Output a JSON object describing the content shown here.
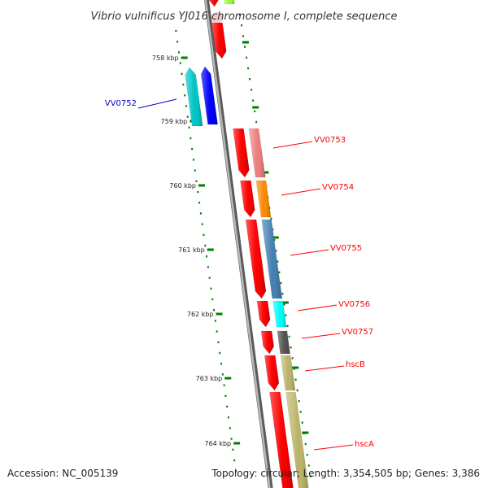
{
  "title": "Vibrio vulnificus YJ016 chromosome I, complete sequence",
  "footer": {
    "accession": "Accession: NC_005139",
    "topology": "Topology: circular; Length: 3,354,505 bp; Genes: 3,386"
  },
  "ticks": [
    "758 kbp",
    "759 kbp",
    "760 kbp",
    "761 kbp",
    "762 kbp",
    "763 kbp",
    "764 kbp"
  ],
  "genes": [
    {
      "label": "",
      "strand": "forward",
      "color": "#ff0000"
    },
    {
      "label": "",
      "strand": "reverse",
      "color": "#99ff33"
    },
    {
      "label": "VV0752",
      "strand": "minus",
      "color": "#00c8c8",
      "label_color": "#0000cc"
    },
    {
      "label": "",
      "strand": "minus",
      "color": "#0000ff"
    },
    {
      "label": "VV0753",
      "strand": "forward",
      "color": "#f08080",
      "label_color": "#ff0000"
    },
    {
      "label": "VV0754",
      "strand": "forward",
      "color": "#ff8c00",
      "label_color": "#ff0000"
    },
    {
      "label": "VV0755",
      "strand": "forward",
      "color": "#4682b4",
      "label_color": "#ff0000"
    },
    {
      "label": "VV0756",
      "strand": "forward",
      "color": "#00ffff",
      "label_color": "#ff0000"
    },
    {
      "label": "VV0757",
      "strand": "forward",
      "color": "#555555",
      "label_color": "#ff0000"
    },
    {
      "label": "hscB",
      "strand": "forward",
      "color": "#bdb76b",
      "label_color": "#ff0000"
    },
    {
      "label": "hscA",
      "strand": "forward",
      "color": "#bdb76b",
      "label_color": "#ff0000"
    }
  ],
  "colors": {
    "backbone": "#808080",
    "tick": "#008000",
    "cds_track": "#ff0000"
  },
  "icons": {
    "plus_strand_arrow": "arrow-down",
    "minus_strand_arrow": "arrow-up"
  }
}
